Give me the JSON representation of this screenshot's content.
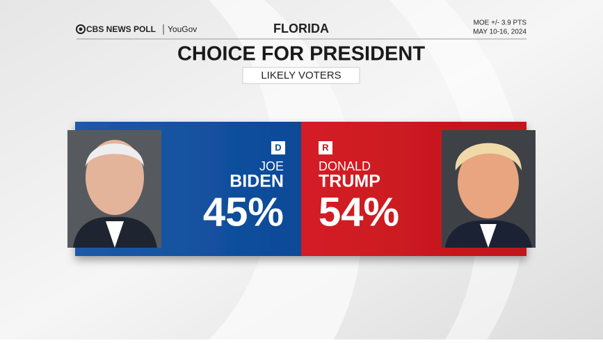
{
  "header": {
    "brand": "CBS NEWS POLL",
    "partner": "YouGov",
    "state": "FLORIDA",
    "moe": "MOE +/- 3.9 PTS",
    "dates": "MAY 10-16, 2024"
  },
  "title": "CHOICE FOR PRESIDENT",
  "subtitle": "LIKELY VOTERS",
  "candidates": [
    {
      "party": "D",
      "first": "JOE",
      "last": "BIDEN",
      "share": "45%"
    },
    {
      "party": "R",
      "first": "DONALD",
      "last": "TRUMP",
      "share": "54%"
    }
  ]
}
